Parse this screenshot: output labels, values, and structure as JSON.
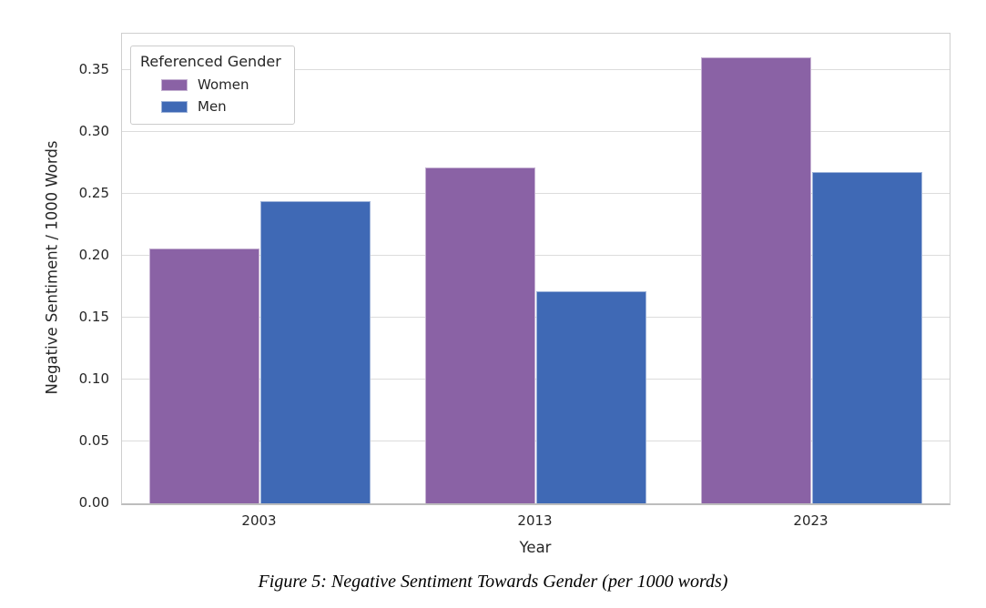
{
  "chart_data": {
    "type": "bar",
    "categories": [
      "2003",
      "2013",
      "2023"
    ],
    "series": [
      {
        "name": "Women",
        "color": "#8A62A5",
        "values": [
          0.206,
          0.271,
          0.36
        ]
      },
      {
        "name": "Men",
        "color": "#3F69B5",
        "values": [
          0.244,
          0.171,
          0.268
        ]
      }
    ],
    "title": "",
    "xlabel": "Year",
    "ylabel": "Negative Sentiment / 1000 Words",
    "ylim": [
      0,
      0.3794
    ],
    "yticks": [
      0.0,
      0.05,
      0.1,
      0.15,
      0.2,
      0.25,
      0.3,
      0.35
    ],
    "ytick_labels": [
      "0.00",
      "0.05",
      "0.10",
      "0.15",
      "0.20",
      "0.25",
      "0.30",
      "0.35"
    ],
    "grid": true,
    "bar_group_width_fraction": 0.8,
    "legend": {
      "title": "Referenced Gender",
      "position": "upper left"
    }
  },
  "legend": {
    "title": "Referenced Gender",
    "entries": [
      {
        "label": "Women",
        "color": "#8A62A5"
      },
      {
        "label": "Men",
        "color": "#3F69B5"
      }
    ]
  },
  "caption": "Figure 5: Negative Sentiment Towards Gender (per 1000 words)",
  "colors": {
    "women": "#8A62A5",
    "men": "#3F69B5",
    "gridline": "#dcdcdc",
    "spine": "#cfcfcf",
    "text": "#262626",
    "background": "#ffffff"
  }
}
